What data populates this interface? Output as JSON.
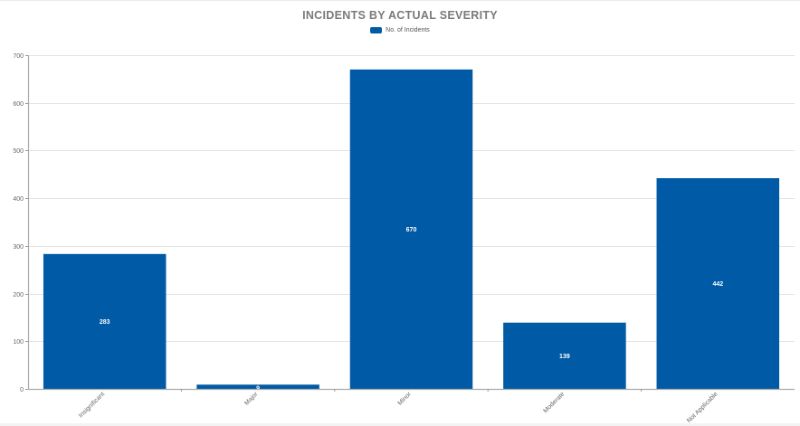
{
  "chart_data": {
    "type": "bar",
    "title": "INCIDENTS BY ACTUAL SEVERITY",
    "legend": [
      "No. of Incidents"
    ],
    "legend_position": "top",
    "categories": [
      "Insignificant",
      "Major",
      "Minor",
      "Moderate",
      "Not Applicable"
    ],
    "series": [
      {
        "name": "No. of Incidents",
        "values": [
          283,
          9,
          670,
          139,
          442
        ],
        "color": "#005aa5"
      }
    ],
    "xlabel": "",
    "ylabel": "",
    "ylim": [
      0,
      700
    ],
    "yticks": [
      0,
      100,
      200,
      300,
      400,
      500,
      600,
      700
    ],
    "grid": true,
    "data_labels": true
  },
  "title": "INCIDENTS BY ACTUAL SEVERITY",
  "legend": {
    "label": "No. of Incidents",
    "color": "#005aa5"
  }
}
